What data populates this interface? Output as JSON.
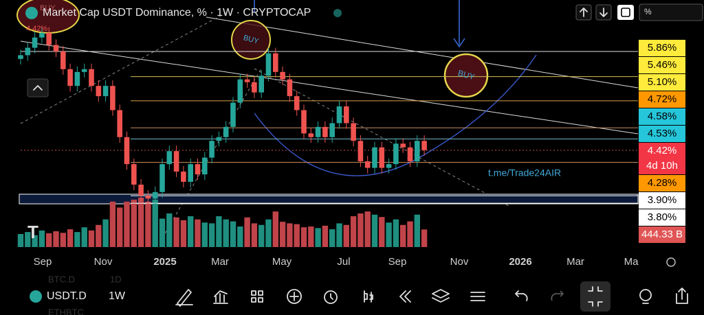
{
  "header": {
    "title": "Market Cap USDT Dominance, % · 1W · CRYPTOCAP",
    "last": "4.42%",
    "badge": "BUY",
    "pct_box": "%"
  },
  "chart": {
    "type": "candlestick",
    "ylim": [
      3.49,
      5.9
    ],
    "open": [
      5.4,
      5.44,
      5.52,
      5.63,
      5.68,
      5.55,
      5.48,
      5.29,
      5.11,
      5.26,
      5.29,
      5.11,
      5.0,
      5.11,
      4.85,
      4.56,
      4.27,
      4.05,
      3.93,
      3.9,
      3.97,
      4.27,
      4.41,
      4.19,
      4.08,
      4.27,
      4.16,
      4.34,
      4.52,
      4.56,
      4.67,
      4.93,
      5.18,
      5.15,
      5.04,
      5.22,
      5.46,
      5.26,
      5.18,
      5.0,
      4.85,
      4.6,
      4.56,
      4.67,
      4.56,
      4.71,
      4.89,
      4.71,
      4.52,
      4.3,
      4.23,
      4.45,
      4.23,
      4.27,
      4.49,
      4.45,
      4.3,
      4.52
    ],
    "high": [
      5.5,
      5.58,
      5.69,
      5.74,
      5.74,
      5.61,
      5.54,
      5.35,
      5.32,
      5.35,
      5.35,
      5.17,
      5.17,
      5.17,
      4.91,
      4.62,
      4.33,
      4.11,
      3.99,
      4.03,
      4.33,
      4.47,
      4.47,
      4.25,
      4.33,
      4.33,
      4.4,
      4.58,
      4.62,
      4.73,
      4.99,
      5.24,
      5.24,
      5.21,
      5.28,
      5.52,
      5.52,
      5.32,
      5.24,
      5.06,
      4.91,
      4.66,
      4.73,
      4.73,
      4.77,
      4.95,
      4.95,
      4.77,
      4.58,
      4.36,
      4.51,
      4.51,
      4.33,
      4.55,
      4.55,
      4.51,
      4.58,
      4.58
    ],
    "low": [
      5.34,
      5.38,
      5.46,
      5.57,
      5.49,
      5.42,
      5.23,
      5.05,
      5.05,
      5.2,
      5.05,
      4.94,
      4.94,
      4.79,
      4.5,
      4.21,
      3.99,
      3.87,
      3.84,
      3.84,
      3.91,
      4.21,
      4.13,
      4.02,
      4.02,
      4.1,
      4.1,
      4.28,
      4.46,
      4.5,
      4.61,
      4.87,
      5.09,
      4.98,
      4.98,
      5.16,
      5.2,
      5.12,
      4.94,
      4.79,
      4.54,
      4.5,
      4.5,
      4.5,
      4.5,
      4.65,
      4.65,
      4.46,
      4.24,
      4.17,
      4.17,
      4.17,
      4.17,
      4.21,
      4.39,
      4.24,
      4.24,
      4.36
    ],
    "close": [
      5.44,
      5.52,
      5.63,
      5.68,
      5.55,
      5.48,
      5.29,
      5.11,
      5.26,
      5.29,
      5.11,
      5.0,
      5.11,
      4.85,
      4.56,
      4.27,
      4.05,
      3.93,
      3.9,
      3.97,
      4.27,
      4.41,
      4.19,
      4.08,
      4.27,
      4.16,
      4.34,
      4.52,
      4.56,
      4.67,
      4.93,
      5.18,
      5.15,
      5.04,
      5.22,
      5.46,
      5.26,
      5.18,
      5.0,
      4.85,
      4.6,
      4.56,
      4.67,
      4.56,
      4.71,
      4.89,
      4.71,
      4.52,
      4.3,
      4.23,
      4.45,
      4.23,
      4.27,
      4.49,
      4.45,
      4.3,
      4.52,
      4.42
    ],
    "volume": [
      330,
      380,
      300,
      420,
      350,
      400,
      360,
      450,
      380,
      500,
      420,
      560,
      700,
      1150,
      1000,
      1150,
      1200,
      1250,
      1150,
      1200,
      720,
      850,
      750,
      680,
      780,
      700,
      620,
      600,
      780,
      700,
      650,
      520,
      750,
      600,
      560,
      700,
      900,
      640,
      600,
      580,
      500,
      520,
      480,
      540,
      450,
      600,
      560,
      780,
      850,
      900,
      820,
      760,
      620,
      700,
      560,
      650,
      820,
      444.33
    ],
    "levels": [
      {
        "value": 5.48,
        "color": "#e0e0e0"
      },
      {
        "value": 5.21,
        "color": "#d6c25a"
      },
      {
        "value": 4.95,
        "color": "#d9a24a"
      },
      {
        "value": 4.66,
        "color": "#c98a5a"
      },
      {
        "value": 4.54,
        "color": "#6fb6c8"
      },
      {
        "value": 4.29,
        "color": "#c98a5a"
      },
      {
        "value": 3.93,
        "color": "#ffffff"
      },
      {
        "value": 3.85,
        "color": "#ffffff"
      }
    ],
    "tags": [
      {
        "text": "5.86%",
        "bg": "#ffeb3b",
        "fg": "#000"
      },
      {
        "text": "5.46%",
        "bg": "#ffeb3b",
        "fg": "#000"
      },
      {
        "text": "5.10%",
        "bg": "#ffeb3b",
        "fg": "#000"
      },
      {
        "text": "4.72%",
        "bg": "#ff9800",
        "fg": "#000"
      },
      {
        "text": "4.58%",
        "bg": "#26c6da",
        "fg": "#000"
      },
      {
        "text": "4.53%",
        "bg": "#26c6da",
        "fg": "#000"
      },
      {
        "text": "4.42%",
        "sub": "4d 10h",
        "bg": "#f23645",
        "fg": "#fff"
      },
      {
        "text": "4.28%",
        "bg": "#ff9800",
        "fg": "#000"
      },
      {
        "text": "3.90%",
        "bg": "#ffffff",
        "fg": "#000"
      },
      {
        "text": "3.80%",
        "bg": "#ffffff",
        "fg": "#000"
      },
      {
        "text": "444.33 B",
        "bg": "#e05555",
        "fg": "#fff"
      }
    ],
    "time_labels": [
      "Sep",
      "Nov",
      "2025",
      "Mar",
      "May",
      "Jul",
      "Sep",
      "Nov",
      "2026",
      "Mar",
      "Ma"
    ],
    "annotations": {
      "buy1": "BUY",
      "buy2": "BUY",
      "watermark": "t.me/Trade24AIR"
    }
  },
  "toolbar": {
    "symbol": "USDT.D",
    "interval": "1W",
    "ghost1": "BTC.D",
    "ghost2": "1D",
    "ghost3": "ETHBTC"
  }
}
